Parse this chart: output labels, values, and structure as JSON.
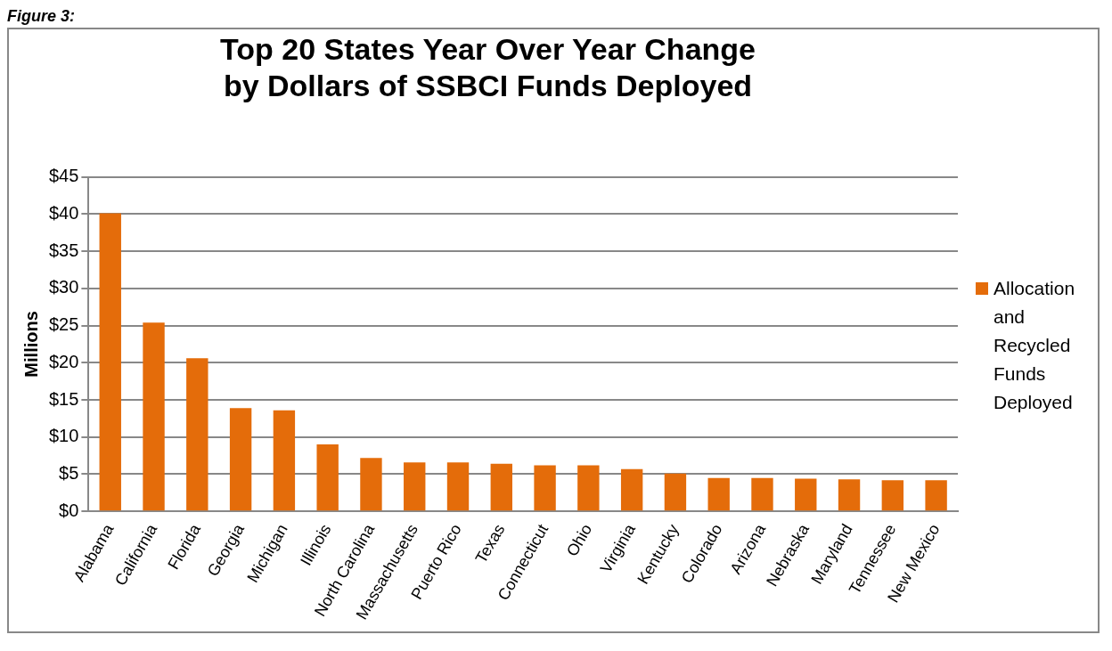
{
  "chart_data": {
    "type": "bar",
    "title": "Top 20 States Year Over Year Change\nby Dollars of SSBCI Funds Deployed",
    "ylabel": "Millions",
    "annotations": [
      "Figure 3:"
    ],
    "categories": [
      "Alabama",
      "California",
      "Florida",
      "Georgia",
      "Michigan",
      "Illinois",
      "North Carolina",
      "Massachusetts",
      "Puerto Rico",
      "Texas",
      "Connecticut",
      "Ohio",
      "Virginia",
      "Kentucky",
      "Colorado",
      "Arizona",
      "Nebraska",
      "Maryland",
      "Tennessee",
      "New Mexico"
    ],
    "series": [
      {
        "name": "Allocation and Recycled Funds Deployed",
        "color": "#e46c0a",
        "values": [
          40.1,
          25.4,
          20.6,
          13.9,
          13.6,
          9.0,
          7.2,
          6.6,
          6.6,
          6.4,
          6.2,
          6.2,
          5.7,
          5.1,
          4.5,
          4.5,
          4.4,
          4.3,
          4.2,
          4.2
        ]
      }
    ],
    "ylim": [
      0,
      45
    ],
    "yticks": [
      {
        "value": 0,
        "label": "$0"
      },
      {
        "value": 5,
        "label": "$5"
      },
      {
        "value": 10,
        "label": "$10"
      },
      {
        "value": 15,
        "label": "$15"
      },
      {
        "value": 20,
        "label": "$20"
      },
      {
        "value": 25,
        "label": "$25"
      },
      {
        "value": 30,
        "label": "$30"
      },
      {
        "value": 35,
        "label": "$35"
      },
      {
        "value": 40,
        "label": "$40"
      },
      {
        "value": 45,
        "label": "$45"
      }
    ],
    "grid": "y",
    "legend": "right"
  }
}
